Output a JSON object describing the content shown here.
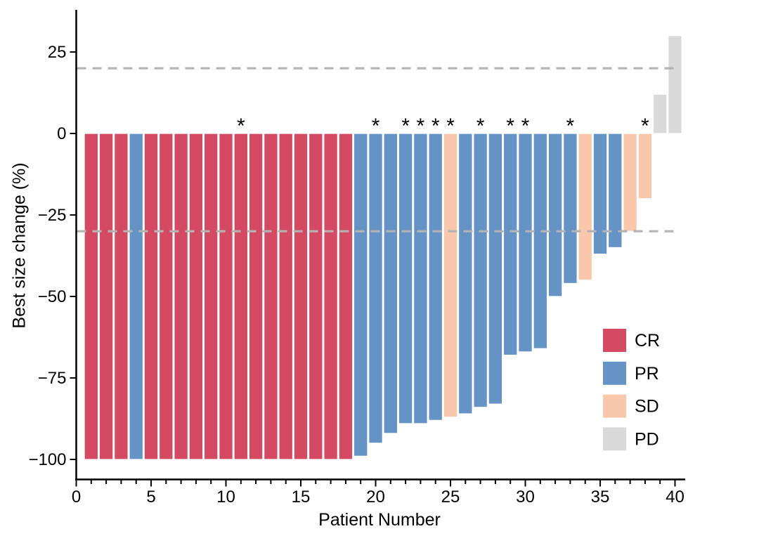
{
  "chart_data": {
    "type": "bar",
    "subtype": "waterfall-best-response",
    "title": "",
    "xlabel": "Patient Number",
    "ylabel": "Best size change (%)",
    "x_major_ticks": [
      0,
      5,
      10,
      15,
      20,
      25,
      30,
      35,
      40
    ],
    "x_minor_tick_step": 1,
    "y_ticks": [
      25,
      0,
      -25,
      -50,
      -75,
      -100
    ],
    "y_tick_labels": [
      "25",
      "0",
      "−25",
      "−50",
      "−75",
      "−100"
    ],
    "xlim": [
      0,
      41
    ],
    "ylim": [
      -106,
      37
    ],
    "grid": false,
    "reference_lines": [
      {
        "y": 20,
        "style": "dashed",
        "color": "#b3b3b3"
      },
      {
        "y": -30,
        "style": "dashed",
        "color": "#b3b3b3"
      }
    ],
    "legend_position": "right-lower",
    "legend": [
      {
        "label": "CR",
        "color": "#d44a63"
      },
      {
        "label": "PR",
        "color": "#6593c5"
      },
      {
        "label": "SD",
        "color": "#f9c8ac"
      },
      {
        "label": "PD",
        "color": "#d9d9d9"
      }
    ],
    "star_annotation_glyph": "*",
    "points": [
      {
        "patient": 1,
        "value": -100,
        "response": "CR",
        "star": false
      },
      {
        "patient": 2,
        "value": -100,
        "response": "CR",
        "star": false
      },
      {
        "patient": 3,
        "value": -100,
        "response": "CR",
        "star": false
      },
      {
        "patient": 4,
        "value": -100,
        "response": "PR",
        "star": false
      },
      {
        "patient": 5,
        "value": -100,
        "response": "CR",
        "star": false
      },
      {
        "patient": 6,
        "value": -100,
        "response": "CR",
        "star": false
      },
      {
        "patient": 7,
        "value": -100,
        "response": "CR",
        "star": false
      },
      {
        "patient": 8,
        "value": -100,
        "response": "CR",
        "star": false
      },
      {
        "patient": 9,
        "value": -100,
        "response": "CR",
        "star": false
      },
      {
        "patient": 10,
        "value": -100,
        "response": "CR",
        "star": false
      },
      {
        "patient": 11,
        "value": -100,
        "response": "CR",
        "star": true
      },
      {
        "patient": 12,
        "value": -100,
        "response": "CR",
        "star": false
      },
      {
        "patient": 13,
        "value": -100,
        "response": "CR",
        "star": false
      },
      {
        "patient": 14,
        "value": -100,
        "response": "CR",
        "star": false
      },
      {
        "patient": 15,
        "value": -100,
        "response": "CR",
        "star": false
      },
      {
        "patient": 16,
        "value": -100,
        "response": "CR",
        "star": false
      },
      {
        "patient": 17,
        "value": -100,
        "response": "CR",
        "star": false
      },
      {
        "patient": 18,
        "value": -100,
        "response": "CR",
        "star": false
      },
      {
        "patient": 19,
        "value": -99,
        "response": "PR",
        "star": false
      },
      {
        "patient": 20,
        "value": -95,
        "response": "PR",
        "star": true
      },
      {
        "patient": 21,
        "value": -92,
        "response": "PR",
        "star": false
      },
      {
        "patient": 22,
        "value": -89,
        "response": "PR",
        "star": true
      },
      {
        "patient": 23,
        "value": -89,
        "response": "PR",
        "star": true
      },
      {
        "patient": 24,
        "value": -88,
        "response": "PR",
        "star": true
      },
      {
        "patient": 25,
        "value": -87,
        "response": "SD",
        "star": true
      },
      {
        "patient": 26,
        "value": -86,
        "response": "PR",
        "star": false
      },
      {
        "patient": 27,
        "value": -84,
        "response": "PR",
        "star": true
      },
      {
        "patient": 28,
        "value": -83,
        "response": "PR",
        "star": false
      },
      {
        "patient": 29,
        "value": -68,
        "response": "PR",
        "star": true
      },
      {
        "patient": 30,
        "value": -67,
        "response": "PR",
        "star": true
      },
      {
        "patient": 31,
        "value": -66,
        "response": "PR",
        "star": false
      },
      {
        "patient": 32,
        "value": -50,
        "response": "PR",
        "star": false
      },
      {
        "patient": 33,
        "value": -46,
        "response": "PR",
        "star": true
      },
      {
        "patient": 34,
        "value": -45,
        "response": "SD",
        "star": false
      },
      {
        "patient": 35,
        "value": -37,
        "response": "PR",
        "star": false
      },
      {
        "patient": 36,
        "value": -35,
        "response": "PR",
        "star": false
      },
      {
        "patient": 37,
        "value": -30,
        "response": "SD",
        "star": false
      },
      {
        "patient": 38,
        "value": -20,
        "response": "SD",
        "star": true
      },
      {
        "patient": 39,
        "value": 12,
        "response": "PD",
        "star": false
      },
      {
        "patient": 40,
        "value": 30,
        "response": "PD",
        "star": false
      }
    ]
  },
  "style": {
    "axis_color": "#000000",
    "text_color": "#000000",
    "bar_outline": "#ffffff",
    "background": "#ffffff"
  }
}
